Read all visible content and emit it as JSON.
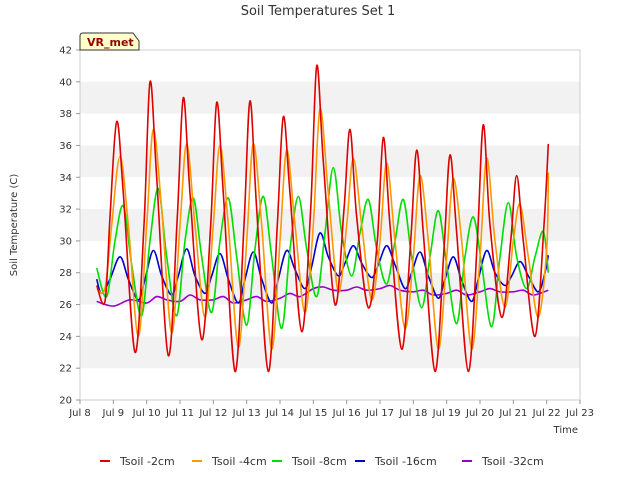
{
  "chart_data": {
    "type": "line",
    "title": "Soil Temperatures Set 1",
    "xlabel": "Time",
    "ylabel": "Soil Temperature (C)",
    "ylim": [
      20,
      42
    ],
    "yticks": [
      20,
      22,
      24,
      26,
      28,
      30,
      32,
      34,
      36,
      38,
      40,
      42
    ],
    "xlim": [
      8,
      23
    ],
    "xticks": [
      8,
      9,
      10,
      11,
      12,
      13,
      14,
      15,
      16,
      17,
      18,
      19,
      20,
      21,
      22,
      23
    ],
    "xtick_labels": [
      "Jul 8",
      "Jul 9",
      "Jul 10",
      "Jul 11",
      "Jul 12",
      "Jul 13",
      "Jul 14",
      "Jul 15",
      "Jul 16",
      "Jul 17",
      "Jul 18",
      "Jul 19",
      "Jul 20",
      "Jul 21",
      "Jul 22",
      "Jul 23"
    ],
    "grid": "horizontal bands",
    "legend_position": "bottom",
    "annotation": "VR_met",
    "series": [
      {
        "name": "Tsoil -2cm",
        "color": "#dd0000",
        "x": [
          8.5,
          8.75,
          8.9,
          9.1,
          9.3,
          9.65,
          9.92,
          10.1,
          10.3,
          10.65,
          10.92,
          11.1,
          11.3,
          11.65,
          11.92,
          12.1,
          12.3,
          12.65,
          12.92,
          13.1,
          13.3,
          13.65,
          13.92,
          14.1,
          14.3,
          14.65,
          14.92,
          15.1,
          15.3,
          15.65,
          15.92,
          16.1,
          16.3,
          16.65,
          16.92,
          17.1,
          17.3,
          17.65,
          17.92,
          18.1,
          18.3,
          18.65,
          18.92,
          19.1,
          19.3,
          19.65,
          19.92,
          20.1,
          20.3,
          20.65,
          20.92,
          21.1,
          21.3,
          21.65,
          21.92,
          22.05
        ],
        "values": [
          27.2,
          26.2,
          31.5,
          37.5,
          33.0,
          23.0,
          31.0,
          40.0,
          34.0,
          22.8,
          31.5,
          39.0,
          33.0,
          23.8,
          31.0,
          38.7,
          33.0,
          21.8,
          31.0,
          38.8,
          32.0,
          21.8,
          31.0,
          37.8,
          33.0,
          24.3,
          32.0,
          41.0,
          35.0,
          26.0,
          32.0,
          37.0,
          31.5,
          25.8,
          30.0,
          36.5,
          31.0,
          23.2,
          30.0,
          35.7,
          30.5,
          21.8,
          29.5,
          35.4,
          30.5,
          21.8,
          30.0,
          37.3,
          31.0,
          25.2,
          30.0,
          34.1,
          30.0,
          24.0,
          31.0,
          36.1
        ]
      },
      {
        "name": "Tsoil -4cm",
        "color": "#ff9900",
        "x": [
          8.5,
          8.75,
          8.95,
          9.2,
          9.45,
          9.75,
          10.0,
          10.2,
          10.45,
          10.75,
          11.0,
          11.2,
          11.45,
          11.75,
          12.0,
          12.2,
          12.45,
          12.75,
          13.0,
          13.2,
          13.45,
          13.75,
          14.0,
          14.2,
          14.45,
          14.75,
          15.0,
          15.2,
          15.45,
          15.75,
          16.0,
          16.2,
          16.45,
          16.75,
          17.0,
          17.2,
          17.45,
          17.75,
          18.0,
          18.2,
          18.45,
          18.75,
          19.0,
          19.2,
          19.45,
          19.75,
          20.0,
          20.2,
          20.45,
          20.75,
          21.0,
          21.2,
          21.45,
          21.75,
          22.0,
          22.05
        ],
        "values": [
          27.0,
          27.0,
          31.0,
          35.3,
          31.0,
          24.0,
          31.0,
          37.0,
          32.0,
          24.2,
          31.0,
          36.1,
          31.0,
          25.2,
          31.0,
          36.0,
          31.0,
          23.3,
          30.0,
          36.1,
          31.0,
          23.2,
          30.0,
          35.7,
          31.0,
          25.5,
          31.0,
          38.3,
          33.0,
          26.8,
          31.0,
          35.2,
          31.0,
          26.3,
          30.0,
          34.9,
          30.0,
          24.5,
          29.0,
          34.1,
          30.0,
          23.2,
          29.0,
          33.9,
          30.0,
          23.2,
          29.0,
          35.2,
          30.0,
          25.8,
          30.0,
          32.3,
          29.0,
          25.2,
          29.5,
          34.3
        ]
      },
      {
        "name": "Tsoil -8cm",
        "color": "#00dd00",
        "x": [
          8.5,
          8.8,
          9.05,
          9.3,
          9.55,
          9.85,
          10.1,
          10.35,
          10.6,
          10.9,
          11.15,
          11.4,
          11.65,
          11.95,
          12.2,
          12.45,
          12.7,
          13.0,
          13.25,
          13.5,
          13.75,
          14.05,
          14.3,
          14.55,
          14.8,
          15.1,
          15.35,
          15.6,
          15.85,
          16.15,
          16.4,
          16.65,
          16.9,
          17.2,
          17.45,
          17.7,
          17.95,
          18.25,
          18.5,
          18.75,
          19.0,
          19.3,
          19.55,
          19.8,
          20.05,
          20.35,
          20.6,
          20.85,
          21.1,
          21.4,
          21.65,
          21.9,
          22.05
        ],
        "values": [
          28.3,
          26.5,
          30.0,
          32.2,
          28.5,
          25.3,
          30.0,
          33.3,
          29.0,
          25.3,
          30.0,
          32.7,
          29.0,
          25.5,
          30.0,
          32.7,
          29.0,
          24.7,
          29.5,
          32.8,
          29.0,
          24.5,
          29.5,
          32.8,
          29.5,
          26.5,
          30.5,
          34.6,
          30.5,
          27.8,
          30.5,
          32.6,
          29.5,
          27.3,
          30.0,
          32.6,
          29.0,
          25.8,
          29.0,
          31.9,
          28.5,
          24.8,
          29.0,
          31.5,
          28.5,
          24.6,
          29.0,
          32.4,
          29.0,
          27.0,
          29.0,
          30.6,
          28.0
        ]
      },
      {
        "name": "Tsoil -16cm",
        "color": "#0000cc",
        "x": [
          8.5,
          8.65,
          8.9,
          9.2,
          9.45,
          9.75,
          9.95,
          10.2,
          10.45,
          10.75,
          10.95,
          11.2,
          11.45,
          11.75,
          11.95,
          12.2,
          12.45,
          12.75,
          12.95,
          13.2,
          13.45,
          13.75,
          13.95,
          14.2,
          14.45,
          14.75,
          14.95,
          15.2,
          15.45,
          15.75,
          15.95,
          16.2,
          16.45,
          16.75,
          16.95,
          17.2,
          17.45,
          17.75,
          17.95,
          18.2,
          18.45,
          18.75,
          18.95,
          19.2,
          19.45,
          19.75,
          19.95,
          20.2,
          20.45,
          20.75,
          20.95,
          21.2,
          21.45,
          21.75,
          21.95,
          22.05
        ],
        "values": [
          27.6,
          26.7,
          27.6,
          29.0,
          27.6,
          26.3,
          27.6,
          29.4,
          27.8,
          26.6,
          27.8,
          29.5,
          27.8,
          26.7,
          27.8,
          29.2,
          27.6,
          26.1,
          27.6,
          29.3,
          27.6,
          26.1,
          27.6,
          29.4,
          28.2,
          27.0,
          28.4,
          30.5,
          29.0,
          27.8,
          28.6,
          29.7,
          28.6,
          27.7,
          28.5,
          29.7,
          28.5,
          27.0,
          28.0,
          29.3,
          27.8,
          26.4,
          27.6,
          29.0,
          27.5,
          26.2,
          27.6,
          29.4,
          28.0,
          27.2,
          27.8,
          28.7,
          27.8,
          26.8,
          28.0,
          29.1
        ]
      },
      {
        "name": "Tsoil -32cm",
        "color": "#9900cc",
        "x": [
          8.5,
          9.0,
          9.5,
          10.0,
          10.3,
          10.6,
          11.0,
          11.3,
          11.6,
          12.0,
          12.3,
          12.6,
          13.0,
          13.3,
          13.6,
          14.0,
          14.3,
          14.6,
          15.0,
          15.3,
          15.6,
          16.0,
          16.3,
          16.6,
          17.0,
          17.3,
          17.6,
          18.0,
          18.3,
          18.6,
          19.0,
          19.3,
          19.6,
          20.0,
          20.3,
          20.6,
          21.0,
          21.3,
          21.6,
          22.05
        ],
        "values": [
          26.2,
          25.9,
          26.3,
          26.1,
          26.5,
          26.3,
          26.2,
          26.6,
          26.3,
          26.3,
          26.5,
          26.1,
          26.3,
          26.5,
          26.2,
          26.4,
          26.7,
          26.5,
          27.0,
          27.1,
          26.9,
          26.9,
          27.1,
          26.9,
          27.0,
          27.2,
          26.9,
          26.8,
          26.9,
          26.6,
          26.7,
          26.9,
          26.6,
          26.8,
          27.0,
          26.8,
          26.8,
          26.9,
          26.6,
          26.9
        ]
      }
    ]
  }
}
